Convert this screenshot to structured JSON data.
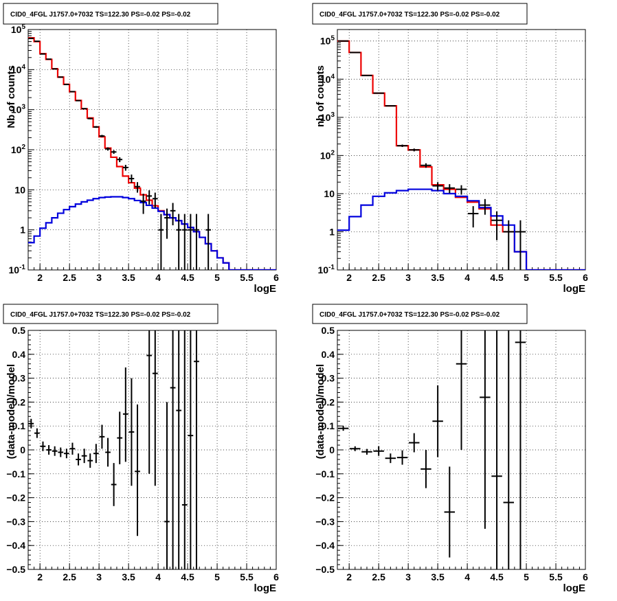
{
  "colors": {
    "data": "#000000",
    "total_model": "#ee0000",
    "source_model": "#0000dd",
    "grid": "#000000"
  },
  "chart_data": [
    {
      "id": "counts-left",
      "type": "line",
      "title": "CID0_4FGL J1757.0+7032 TS=122.30 PS=-0.02 PS=-0.02",
      "xlabel": "logE",
      "ylabel": "Nb of counts",
      "xlim": [
        1.8,
        6.0
      ],
      "ylim": [
        0.1,
        100000
      ],
      "yscale": "log",
      "grid": true,
      "x_ticks": [
        "2",
        "2.5",
        "3",
        "3.5",
        "4",
        "4.5",
        "5",
        "5.5",
        "6"
      ],
      "y_ticks": [
        "10^-1",
        "1",
        "10",
        "10^2",
        "10^3",
        "10^4",
        "10^5"
      ],
      "bin_edges": [
        1.8,
        1.9,
        2.0,
        2.1,
        2.2,
        2.3,
        2.4,
        2.5,
        2.6,
        2.7,
        2.8,
        2.9,
        3.0,
        3.1,
        3.2,
        3.3,
        3.4,
        3.5,
        3.6,
        3.7,
        3.8,
        3.9,
        4.0,
        4.1,
        4.2,
        4.3,
        4.4,
        4.5,
        4.6,
        4.7,
        4.8,
        4.9,
        5.0,
        5.1,
        5.2,
        5.3,
        5.4,
        5.5,
        5.6,
        5.7,
        5.8,
        5.9,
        6.0
      ],
      "series": [
        {
          "role": "total_model",
          "values": [
            62000,
            50000,
            25000,
            18000,
            10500,
            6500,
            4300,
            2800,
            1700,
            1050,
            620,
            370,
            210,
            110,
            65,
            38,
            22,
            15,
            11,
            7.5,
            5.5,
            4,
            3,
            2.4,
            2,
            1.7,
            1.4,
            1.15,
            0.9,
            0.65,
            0.45,
            0.3,
            0.2,
            0.15,
            0.1,
            0.1,
            0.1,
            0.1,
            0.1,
            0.1,
            0.1,
            0.1
          ]
        },
        {
          "role": "source_model",
          "values": [
            0.48,
            0.7,
            1.1,
            1.5,
            2.0,
            2.6,
            3.2,
            3.8,
            4.4,
            5.0,
            5.5,
            6.0,
            6.4,
            6.6,
            6.7,
            6.7,
            6.4,
            6.0,
            5.4,
            4.8,
            4.1,
            3.5,
            2.9,
            2.4,
            2.0,
            1.7,
            1.4,
            1.15,
            0.9,
            0.65,
            0.45,
            0.3,
            0.2,
            0.15,
            0.1,
            0.1,
            0.1,
            0.1,
            0.1,
            0.1,
            0.1,
            0.1
          ]
        }
      ],
      "points": [
        {
          "x": 1.85,
          "y": 60000,
          "ylo": 59500,
          "yhi": 60500
        },
        {
          "x": 1.95,
          "y": 51000,
          "ylo": 50500,
          "yhi": 51500
        },
        {
          "x": 2.05,
          "y": 24500,
          "ylo": 24300,
          "yhi": 24700
        },
        {
          "x": 2.15,
          "y": 18200,
          "ylo": 18000,
          "yhi": 18400
        },
        {
          "x": 2.25,
          "y": 10400,
          "ylo": 10300,
          "yhi": 10500
        },
        {
          "x": 2.35,
          "y": 6500,
          "ylo": 6420,
          "yhi": 6580
        },
        {
          "x": 2.45,
          "y": 4250,
          "ylo": 4180,
          "yhi": 4320
        },
        {
          "x": 2.55,
          "y": 2820,
          "ylo": 2770,
          "yhi": 2870
        },
        {
          "x": 2.65,
          "y": 1680,
          "ylo": 1640,
          "yhi": 1720
        },
        {
          "x": 2.75,
          "y": 1060,
          "ylo": 1030,
          "yhi": 1090
        },
        {
          "x": 2.85,
          "y": 600,
          "ylo": 575,
          "yhi": 625
        },
        {
          "x": 2.95,
          "y": 370,
          "ylo": 351,
          "yhi": 389
        },
        {
          "x": 3.05,
          "y": 220,
          "ylo": 205,
          "yhi": 235
        },
        {
          "x": 3.15,
          "y": 105,
          "ylo": 95,
          "yhi": 115
        },
        {
          "x": 3.25,
          "y": 88,
          "ylo": 79,
          "yhi": 97
        },
        {
          "x": 3.35,
          "y": 57,
          "ylo": 49,
          "yhi": 65
        },
        {
          "x": 3.45,
          "y": 36,
          "ylo": 30,
          "yhi": 42
        },
        {
          "x": 3.55,
          "y": 19,
          "ylo": 15,
          "yhi": 24
        },
        {
          "x": 3.65,
          "y": 12,
          "ylo": 8.5,
          "yhi": 15.5
        },
        {
          "x": 3.75,
          "y": 5.2,
          "ylo": 2.5,
          "yhi": 8
        },
        {
          "x": 3.85,
          "y": 7,
          "ylo": 4.3,
          "yhi": 9.7
        },
        {
          "x": 3.95,
          "y": 6,
          "ylo": 3.5,
          "yhi": 8.5
        },
        {
          "x": 4.05,
          "y": 1,
          "ylo": 0.1,
          "yhi": 2.5
        },
        {
          "x": 4.15,
          "y": 2,
          "ylo": 0.6,
          "yhi": 3.4
        },
        {
          "x": 4.25,
          "y": 3,
          "ylo": 1.3,
          "yhi": 4.7
        },
        {
          "x": 4.35,
          "y": 1,
          "ylo": 0.1,
          "yhi": 2.5
        },
        {
          "x": 4.45,
          "y": 1,
          "ylo": 0.1,
          "yhi": 2.5
        },
        {
          "x": 4.55,
          "y": 1,
          "ylo": 0.1,
          "yhi": 2.5
        },
        {
          "x": 4.65,
          "y": 1,
          "ylo": 0.1,
          "yhi": 2.5
        },
        {
          "x": 4.85,
          "y": 1,
          "ylo": 0.1,
          "yhi": 2.5
        }
      ]
    },
    {
      "id": "counts-right",
      "type": "line",
      "title": "CID0_4FGL J1757.0+7032 TS=122.30 PS=-0.02 PS=-0.02",
      "xlabel": "logE",
      "ylabel": "nb of counts",
      "xlim": [
        1.8,
        6.0
      ],
      "ylim": [
        0.1,
        200000
      ],
      "yscale": "log",
      "grid": true,
      "x_ticks": [
        "2",
        "2.5",
        "3",
        "3.5",
        "4",
        "4.5",
        "5",
        "5.5",
        "6"
      ],
      "y_ticks": [
        "10^-1",
        "1",
        "10",
        "10^2",
        "10^3",
        "10^4",
        "10^5"
      ],
      "bin_edges": [
        1.8,
        2.0,
        2.2,
        2.4,
        2.6,
        2.8,
        3.0,
        3.2,
        3.4,
        3.6,
        3.8,
        4.0,
        4.2,
        4.4,
        4.6,
        4.8,
        5.0,
        5.2,
        5.4,
        5.6,
        5.8,
        6.0
      ],
      "series": [
        {
          "role": "total_model",
          "values": [
            100000,
            50000,
            12500,
            4300,
            2000,
            180,
            140,
            50,
            17,
            13,
            8,
            6,
            4,
            1.5,
            1,
            0.3,
            0.1,
            0.1,
            0.1,
            0.1,
            0.1
          ]
        },
        {
          "role": "source_model",
          "values": [
            1.1,
            2.5,
            5.0,
            8.5,
            10.5,
            12.0,
            13.0,
            13.0,
            12.0,
            10.0,
            8.5,
            6.5,
            4.3,
            2.6,
            1.5,
            0.3,
            0.1,
            0.1,
            0.1,
            0.1,
            0.1
          ]
        }
      ],
      "points": [
        {
          "x": 1.9,
          "y": 100000,
          "ylo": 99700,
          "yhi": 100300
        },
        {
          "x": 2.1,
          "y": 50000,
          "ylo": 49800,
          "yhi": 50200
        },
        {
          "x": 2.3,
          "y": 12500,
          "ylo": 12390,
          "yhi": 12610
        },
        {
          "x": 2.5,
          "y": 4300,
          "ylo": 4235,
          "yhi": 4365
        },
        {
          "x": 2.7,
          "y": 2000,
          "ylo": 1955,
          "yhi": 2045
        },
        {
          "x": 2.9,
          "y": 180,
          "ylo": 167,
          "yhi": 193
        },
        {
          "x": 3.1,
          "y": 140,
          "ylo": 128,
          "yhi": 152
        },
        {
          "x": 3.3,
          "y": 55,
          "ylo": 47.6,
          "yhi": 62.4
        },
        {
          "x": 3.5,
          "y": 16,
          "ylo": 12,
          "yhi": 20
        },
        {
          "x": 3.7,
          "y": 14,
          "ylo": 10.3,
          "yhi": 17.7
        },
        {
          "x": 3.9,
          "y": 13,
          "ylo": 9.4,
          "yhi": 16.6
        },
        {
          "x": 4.1,
          "y": 3,
          "ylo": 1.3,
          "yhi": 4.7
        },
        {
          "x": 4.3,
          "y": 5,
          "ylo": 2.8,
          "yhi": 7.2
        },
        {
          "x": 4.5,
          "y": 2,
          "ylo": 0.6,
          "yhi": 3.4
        },
        {
          "x": 4.7,
          "y": 1,
          "ylo": 0.1,
          "yhi": 2
        },
        {
          "x": 4.9,
          "y": 1,
          "ylo": 0.1,
          "yhi": 2
        }
      ]
    },
    {
      "id": "residual-left",
      "type": "scatter",
      "title": "CID0_4FGL J1757.0+7032 TS=122.30 PS=-0.02 PS=-0.02",
      "xlabel": "logE",
      "ylabel": "(data-model)/model",
      "xlim": [
        1.8,
        6.0
      ],
      "ylim": [
        -0.5,
        0.5
      ],
      "grid": true,
      "x_ticks": [
        "2",
        "2.5",
        "3",
        "3.5",
        "4",
        "4.5",
        "5",
        "5.5",
        "6"
      ],
      "y_ticks": [
        "−0.5",
        "−0.4",
        "−0.3",
        "−0.2",
        "−0.1",
        "0",
        "0.1",
        "0.2",
        "0.3",
        "0.4",
        "0.5"
      ],
      "xhalf": 0.05,
      "points": [
        {
          "x": 1.85,
          "y": 0.11,
          "ylo": 0.09,
          "yhi": 0.13
        },
        {
          "x": 1.95,
          "y": 0.07,
          "ylo": 0.05,
          "yhi": 0.09
        },
        {
          "x": 2.05,
          "y": 0.015,
          "ylo": -0.005,
          "yhi": 0.035
        },
        {
          "x": 2.15,
          "y": 0.0,
          "ylo": -0.02,
          "yhi": 0.02
        },
        {
          "x": 2.25,
          "y": -0.005,
          "ylo": -0.025,
          "yhi": 0.015
        },
        {
          "x": 2.35,
          "y": -0.01,
          "ylo": -0.03,
          "yhi": 0.01
        },
        {
          "x": 2.45,
          "y": -0.015,
          "ylo": -0.035,
          "yhi": 0.005
        },
        {
          "x": 2.55,
          "y": 0.005,
          "ylo": -0.02,
          "yhi": 0.03
        },
        {
          "x": 2.65,
          "y": -0.04,
          "ylo": -0.065,
          "yhi": -0.015
        },
        {
          "x": 2.75,
          "y": -0.025,
          "ylo": -0.055,
          "yhi": 0.005
        },
        {
          "x": 2.85,
          "y": -0.045,
          "ylo": -0.075,
          "yhi": -0.015
        },
        {
          "x": 2.95,
          "y": -0.015,
          "ylo": -0.055,
          "yhi": 0.025
        },
        {
          "x": 3.05,
          "y": 0.055,
          "ylo": 0.005,
          "yhi": 0.105
        },
        {
          "x": 3.15,
          "y": -0.01,
          "ylo": -0.07,
          "yhi": 0.05
        },
        {
          "x": 3.25,
          "y": -0.145,
          "ylo": -0.235,
          "yhi": -0.055
        },
        {
          "x": 3.35,
          "y": 0.05,
          "ylo": -0.06,
          "yhi": 0.16
        },
        {
          "x": 3.45,
          "y": 0.15,
          "ylo": -0.05,
          "yhi": 0.345
        },
        {
          "x": 3.55,
          "y": 0.075,
          "ylo": -0.15,
          "yhi": 0.3
        },
        {
          "x": 3.65,
          "y": -0.09,
          "ylo": -0.36,
          "yhi": 0.19
        },
        {
          "x": 3.85,
          "y": 0.395,
          "ylo": -0.1,
          "yhi": 0.5
        },
        {
          "x": 3.95,
          "y": 0.32,
          "ylo": -0.15,
          "yhi": 0.5
        },
        {
          "x": 4.15,
          "y": -0.3,
          "ylo": -0.5,
          "yhi": 0.2
        },
        {
          "x": 4.25,
          "y": 0.26,
          "ylo": -0.5,
          "yhi": 0.5
        },
        {
          "x": 4.35,
          "y": 0.165,
          "ylo": -0.5,
          "yhi": 0.5
        },
        {
          "x": 4.45,
          "y": -0.23,
          "ylo": -0.5,
          "yhi": 0.5
        },
        {
          "x": 4.55,
          "y": 0.06,
          "ylo": -0.5,
          "yhi": 0.5
        },
        {
          "x": 4.65,
          "y": 0.37,
          "ylo": -0.5,
          "yhi": 0.5
        }
      ]
    },
    {
      "id": "residual-right",
      "type": "scatter",
      "title": "CID0_4FGL J1757.0+7032 TS=122.30 PS=-0.02 PS=-0.02",
      "xlabel": "logE",
      "ylabel": "(data-model)/model",
      "xlim": [
        1.8,
        6.0
      ],
      "ylim": [
        -0.5,
        0.5
      ],
      "grid": true,
      "x_ticks": [
        "2",
        "2.5",
        "3",
        "3.5",
        "4",
        "4.5",
        "5",
        "5.5",
        "6"
      ],
      "y_ticks": [
        "−0.5",
        "−0.4",
        "−0.3",
        "−0.2",
        "−0.1",
        "0",
        "0.1",
        "0.2",
        "0.3",
        "0.4",
        "0.5"
      ],
      "xhalf": 0.1,
      "points": [
        {
          "x": 1.9,
          "y": 0.09,
          "ylo": 0.08,
          "yhi": 0.1
        },
        {
          "x": 2.1,
          "y": 0.005,
          "ylo": -0.005,
          "yhi": 0.015
        },
        {
          "x": 2.3,
          "y": -0.008,
          "ylo": -0.02,
          "yhi": 0.004
        },
        {
          "x": 2.5,
          "y": -0.005,
          "ylo": -0.025,
          "yhi": 0.015
        },
        {
          "x": 2.7,
          "y": -0.035,
          "ylo": -0.055,
          "yhi": -0.015
        },
        {
          "x": 2.9,
          "y": -0.032,
          "ylo": -0.062,
          "yhi": -0.002
        },
        {
          "x": 3.1,
          "y": 0.03,
          "ylo": -0.01,
          "yhi": 0.07
        },
        {
          "x": 3.3,
          "y": -0.08,
          "ylo": -0.16,
          "yhi": 0.0
        },
        {
          "x": 3.5,
          "y": 0.12,
          "ylo": -0.03,
          "yhi": 0.27
        },
        {
          "x": 3.7,
          "y": -0.26,
          "ylo": -0.45,
          "yhi": -0.07
        },
        {
          "x": 3.9,
          "y": 0.36,
          "ylo": 0.0,
          "yhi": 0.5
        },
        {
          "x": 4.3,
          "y": 0.22,
          "ylo": -0.33,
          "yhi": 0.5
        },
        {
          "x": 4.5,
          "y": -0.11,
          "ylo": -0.5,
          "yhi": 0.5
        },
        {
          "x": 4.7,
          "y": -0.22,
          "ylo": -0.5,
          "yhi": 0.5
        },
        {
          "x": 4.9,
          "y": 0.45,
          "ylo": -0.5,
          "yhi": 0.5
        }
      ]
    }
  ]
}
